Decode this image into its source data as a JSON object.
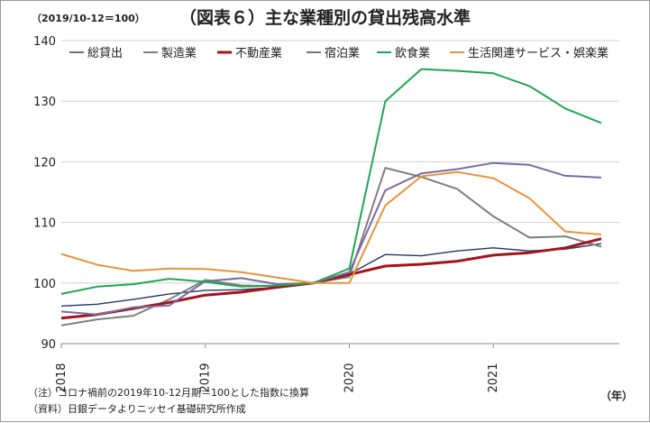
{
  "chart_data": {
    "type": "line",
    "title": "（図表６）主な業種別の貸出残高水準",
    "unit_note": "（2019/10-12＝100）",
    "x_unit": "（年）",
    "notes": [
      "（注）コロナ禍前の2019年10-12月期＝100とした指数に換算",
      "（資料）日銀データよりニッセイ基礎研究所作成"
    ],
    "ylim": [
      90,
      140
    ],
    "yticks": [
      90,
      100,
      110,
      120,
      130,
      140
    ],
    "xlim": [
      2018,
      2021.875
    ],
    "xticks": [
      {
        "value": 2018,
        "label": "2018"
      },
      {
        "value": 2019,
        "label": "2019"
      },
      {
        "value": 2020,
        "label": "2020"
      },
      {
        "value": 2021,
        "label": "2021"
      }
    ],
    "grid": "horizontal",
    "legend_position": "top",
    "x": [
      2018,
      2018.25,
      2018.5,
      2018.75,
      2019,
      2019.25,
      2019.5,
      2019.75,
      2020,
      2020.25,
      2020.5,
      2020.75,
      2021,
      2021.25,
      2021.5,
      2021.75
    ],
    "series": [
      {
        "name": "総貸出",
        "color": "#1f3864",
        "width": 1.4,
        "values": [
          96.2,
          96.5,
          97.3,
          98.2,
          98.8,
          98.9,
          99.3,
          100,
          101.5,
          104.7,
          104.5,
          105.3,
          105.8,
          105.3,
          105.6,
          106.5
        ]
      },
      {
        "name": "製造業",
        "color": "#7f7f7f",
        "width": 2,
        "values": [
          93.0,
          94.0,
          94.6,
          97.3,
          100.5,
          99.6,
          99.5,
          100,
          101.0,
          119.0,
          117.5,
          115.5,
          111.0,
          107.5,
          107.7,
          106.0
        ]
      },
      {
        "name": "不動産業",
        "color": "#a5131b",
        "width": 3,
        "values": [
          94.2,
          94.8,
          95.8,
          96.8,
          98.0,
          98.5,
          99.3,
          100,
          101.4,
          102.8,
          103.1,
          103.6,
          104.6,
          105.0,
          105.8,
          107.3
        ]
      },
      {
        "name": "宿泊業",
        "color": "#7a6ba0",
        "width": 2,
        "values": [
          95.3,
          94.8,
          96.0,
          96.3,
          100.3,
          100.8,
          99.8,
          100,
          101.8,
          115.3,
          118.1,
          118.8,
          119.8,
          119.5,
          117.7,
          117.4
        ]
      },
      {
        "name": "飲食業",
        "color": "#1fa653",
        "width": 2,
        "values": [
          98.2,
          99.4,
          99.8,
          100.7,
          100.2,
          99.4,
          99.6,
          100,
          102.4,
          130.0,
          135.3,
          135.0,
          134.6,
          132.5,
          128.8,
          126.4
        ]
      },
      {
        "name": "生活関連サービス・娯楽業",
        "color": "#e8943a",
        "width": 2,
        "values": [
          104.8,
          103.0,
          102.0,
          102.4,
          102.3,
          101.8,
          100.9,
          100,
          100.0,
          112.8,
          117.6,
          118.3,
          117.3,
          114.0,
          108.5,
          108.0
        ]
      }
    ]
  }
}
